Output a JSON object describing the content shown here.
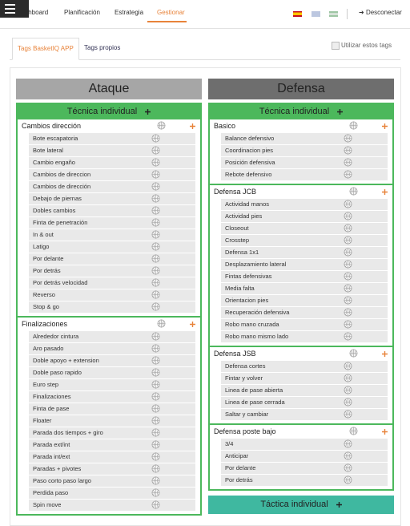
{
  "nav": {
    "items": [
      "Dashboard",
      "Planificación",
      "Estrategia",
      "Gestionar"
    ],
    "logout": "Desconectar"
  },
  "tabs": [
    "Tags BasketIQ APP",
    "Tags propios"
  ],
  "checkbox_label": "Utilizar estos tags",
  "columns": [
    {
      "title": "Ataque",
      "sections": [
        {
          "title": "Técnica individual",
          "groups": [
            {
              "name": "Cambios dirección",
              "items": [
                "Bote escapatoria",
                "Bote lateral",
                "Cambio engaño",
                "Cambios de direccion",
                "Cambios de dirección",
                "Debajo de piernas",
                "Dobles cambios",
                "Finta de penetración",
                "In & out",
                "Latigo",
                "Por delante",
                "Por detrás",
                "Por detrás velocidad",
                "Reverso",
                "Stop & go"
              ]
            },
            {
              "name": "Finalizaciones",
              "items": [
                "Alrededor cintura",
                "Aro pasado",
                "Doble apoyo + extension",
                "Doble paso rapido",
                "Euro step",
                "Finalizaciones",
                "Finta de pase",
                "Floater",
                "Parada dos tiempos + giro",
                "Parada ext/int",
                "Parada int/ext",
                "Paradas + pivotes",
                "Paso corto paso largo",
                "Perdida paso",
                "Spin move"
              ]
            }
          ]
        }
      ]
    },
    {
      "title": "Defensa",
      "sections": [
        {
          "title": "Técnica individual",
          "groups": [
            {
              "name": "Basico",
              "items": [
                "Balance defensivo",
                "Coordinacion pies",
                "Posición defensiva",
                "Rebote defensivo"
              ]
            },
            {
              "name": "Defensa JCB",
              "items": [
                "Actividad manos",
                "Actividad pies",
                "Closeout",
                "Crosstep",
                "Defensa 1x1",
                "Desplazamiento lateral",
                "Fintas defensivas",
                "Media falta",
                "Orientacion pies",
                "Recuperación defensiva",
                "Robo mano cruzada",
                "Robo mano mismo lado"
              ]
            },
            {
              "name": "Defensa JSB",
              "items": [
                "Defensa cortes",
                "Fintar y volver",
                "Linea de pase abierta",
                "Linea de pase cerrada",
                "Saltar y cambiar"
              ]
            },
            {
              "name": "Defensa poste bajo",
              "items": [
                "3/4",
                "Anticipar",
                "Por delante",
                "Por detrás"
              ]
            }
          ]
        },
        {
          "title": "Táctica individual",
          "groups": []
        }
      ]
    }
  ]
}
